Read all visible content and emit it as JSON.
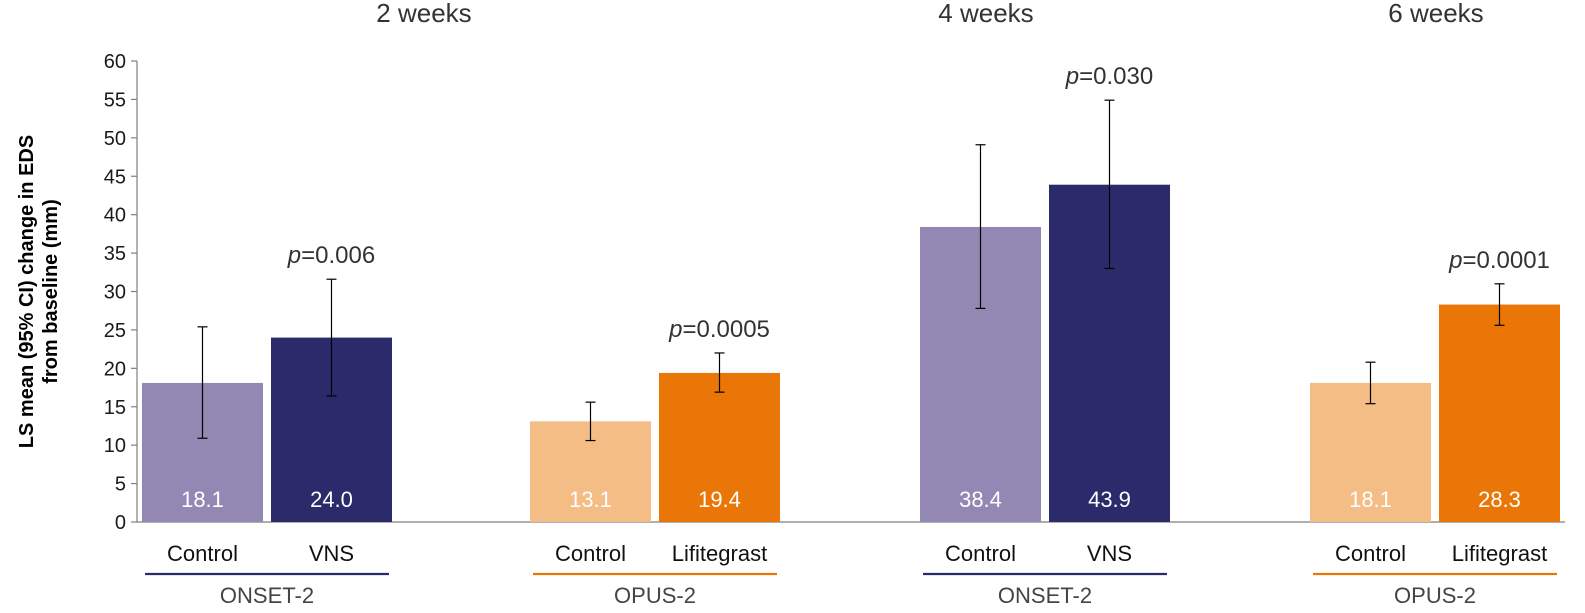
{
  "chart_data": {
    "type": "bar",
    "ylabel": "LS mean (95% CI) change in EDS from baseline (mm)",
    "ylim": [
      0,
      60
    ],
    "yticks": [
      0,
      5,
      10,
      15,
      20,
      25,
      30,
      35,
      40,
      45,
      50,
      55,
      60
    ],
    "time_points": [
      "2 weeks",
      "4 weeks",
      "6 weeks"
    ],
    "grid": false,
    "groups": [
      {
        "group": "ONSET-2",
        "group_color": "#2b2a6b",
        "p_label": "p",
        "p_value": "=0.006",
        "bars": [
          {
            "category": "Control",
            "value": 18.1,
            "label": "18.1",
            "ci_low": 10.9,
            "ci_high": 25.4,
            "color": "#9288b3"
          },
          {
            "category": "VNS",
            "value": 24.0,
            "label": "24.0",
            "ci_low": 16.4,
            "ci_high": 31.6,
            "color": "#2b2a6b"
          }
        ]
      },
      {
        "group": "OPUS-2",
        "group_color": "#e97606",
        "p_label": "p",
        "p_value": "=0.0005",
        "bars": [
          {
            "category": "Control",
            "value": 13.1,
            "label": "13.1",
            "ci_low": 10.6,
            "ci_high": 15.6,
            "color": "#f3bd85"
          },
          {
            "category": "Lifitegrast",
            "value": 19.4,
            "label": "19.4",
            "ci_low": 16.9,
            "ci_high": 22.0,
            "color": "#e97606"
          }
        ]
      },
      {
        "group": "ONSET-2",
        "group_color": "#2b2a6b",
        "p_label": "p",
        "p_value": "=0.030",
        "bars": [
          {
            "category": "Control",
            "value": 38.4,
            "label": "38.4",
            "ci_low": 27.8,
            "ci_high": 49.1,
            "color": "#9288b3"
          },
          {
            "category": "VNS",
            "value": 43.9,
            "label": "43.9",
            "ci_low": 33.0,
            "ci_high": 54.9,
            "color": "#2b2a6b"
          }
        ]
      },
      {
        "group": "OPUS-2",
        "group_color": "#e97606",
        "p_label": "p",
        "p_value": "=0.0001",
        "bars": [
          {
            "category": "Control",
            "value": 18.1,
            "label": "18.1",
            "ci_low": 15.4,
            "ci_high": 20.8,
            "color": "#f3bd85"
          },
          {
            "category": "Lifitegrast",
            "value": 28.3,
            "label": "28.3",
            "ci_low": 25.6,
            "ci_high": 31.0,
            "color": "#e97606"
          }
        ]
      }
    ]
  }
}
